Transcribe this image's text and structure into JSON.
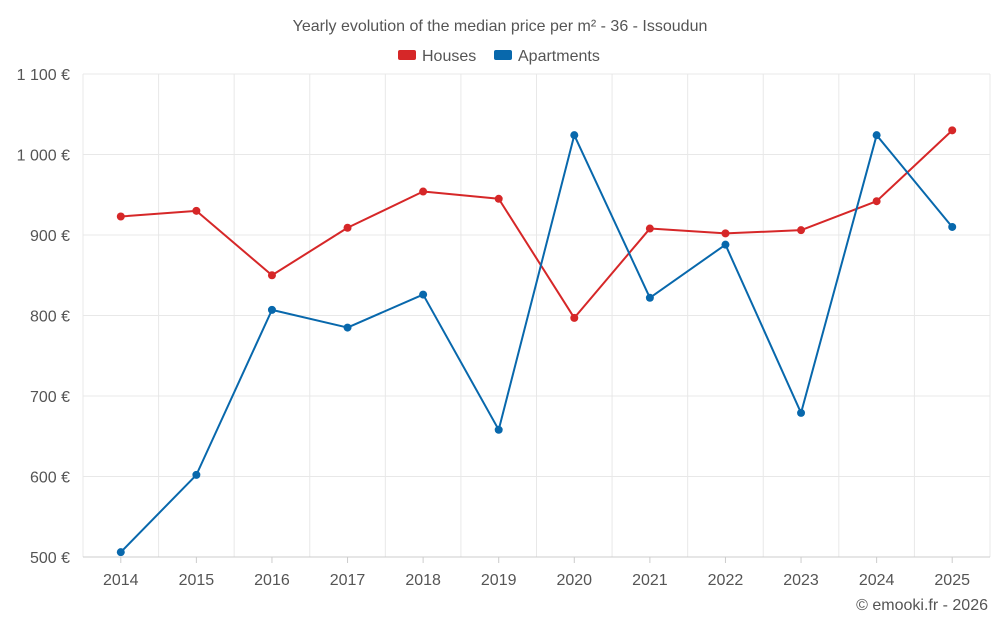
{
  "chart_data": {
    "type": "line",
    "title": "Yearly evolution of the median price per m² - 36 - Issoudun",
    "categories": [
      "2014",
      "2015",
      "2016",
      "2017",
      "2018",
      "2019",
      "2020",
      "2021",
      "2022",
      "2023",
      "2024",
      "2025"
    ],
    "series": [
      {
        "name": "Houses",
        "color": "#d62728",
        "values": [
          923,
          930,
          850,
          909,
          954,
          945,
          797,
          908,
          902,
          906,
          942,
          1030
        ]
      },
      {
        "name": "Apartments",
        "color": "#0868ac",
        "values": [
          506,
          602,
          807,
          785,
          826,
          658,
          1024,
          822,
          888,
          679,
          1024,
          910
        ]
      }
    ],
    "ylim": [
      500,
      1100
    ],
    "yticks": [
      500,
      600,
      700,
      800,
      900,
      1000,
      1100
    ],
    "ytick_labels": [
      "500 €",
      "600 €",
      "700 €",
      "800 €",
      "900 €",
      "1 000 €",
      "1 100 €"
    ],
    "grid": true,
    "legend_position": "top-center",
    "xlabel": "",
    "ylabel": ""
  },
  "footer": {
    "credit": "© emooki.fr - 2026"
  },
  "colors": {
    "grid": "#e8e8e8",
    "axis": "#cccccc",
    "text": "#555555"
  }
}
